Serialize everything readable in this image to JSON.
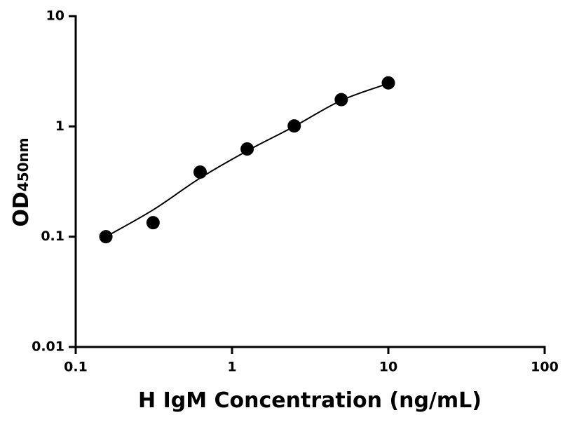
{
  "chart_data": {
    "type": "scatter",
    "x_label": "H IgM Concentration (ng/mL)",
    "y_label": "OD",
    "y_label_sub": "450nm",
    "xscale": "log",
    "yscale": "log",
    "xlim": [
      0.1,
      100
    ],
    "xticks": [
      0.1,
      1,
      10,
      100
    ],
    "ylim": [
      0.01,
      10
    ],
    "yticks": [
      0.01,
      0.1,
      1,
      10
    ],
    "x": [
      0.156,
      0.3125,
      0.625,
      1.25,
      2.5,
      5,
      10
    ],
    "values": [
      0.1,
      0.134,
      0.385,
      0.625,
      1.01,
      1.75,
      2.48
    ],
    "color": "#000000",
    "fit": {
      "x": [
        0.156,
        0.3125,
        0.625,
        1.25,
        2.5,
        5,
        10
      ],
      "values": [
        0.1,
        0.175,
        0.34,
        0.6,
        1.0,
        1.72,
        2.45
      ],
      "color": "#000000"
    }
  }
}
